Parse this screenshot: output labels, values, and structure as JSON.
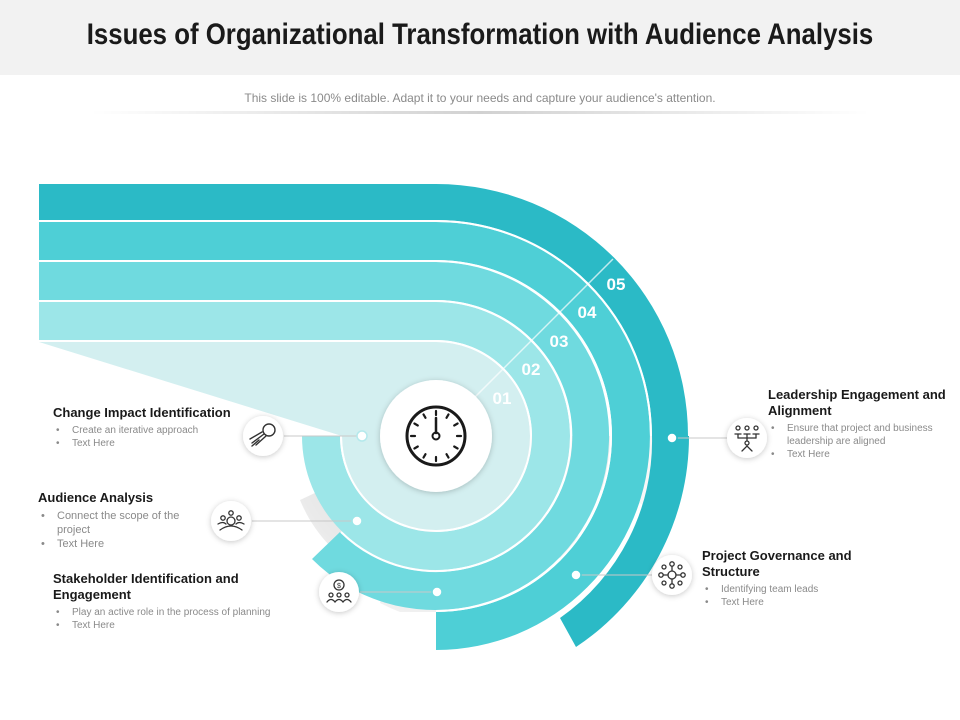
{
  "title": "Issues of Organizational Transformation with Audience Analysis",
  "subtitle": "This slide is 100% editable. Adapt it to your needs and capture your audience's attention.",
  "colors": {
    "band_05": "#2bbac6",
    "band_04": "#4ecfd6",
    "band_03": "#6fdadf",
    "band_02": "#9ce6e8",
    "band_01": "#d3eff0"
  },
  "steps": [
    "01",
    "02",
    "03",
    "04",
    "05"
  ],
  "center_icon": "clock-icon",
  "items": [
    {
      "title": "Change Impact Identification",
      "bullets": [
        "Create an iterative approach",
        "Text Here"
      ],
      "icon": "meteor-icon"
    },
    {
      "title": "Audience Analysis",
      "bullets": [
        "Connect the scope of the project",
        "Text Here"
      ],
      "icon": "audience-icon"
    },
    {
      "title": "Stakeholder Identification and Engagement",
      "bullets": [
        "Play an active role in the process of planning",
        "Text Here"
      ],
      "icon": "stakeholder-icon"
    },
    {
      "title": "Project Governance and Structure",
      "bullets": [
        "Identifying team leads",
        "Text Here"
      ],
      "icon": "network-icon"
    },
    {
      "title": "Leadership Engagement and Alignment",
      "bullets": [
        "Ensure that project and business leadership are aligned",
        "Text Here"
      ],
      "icon": "hierarchy-icon"
    }
  ]
}
